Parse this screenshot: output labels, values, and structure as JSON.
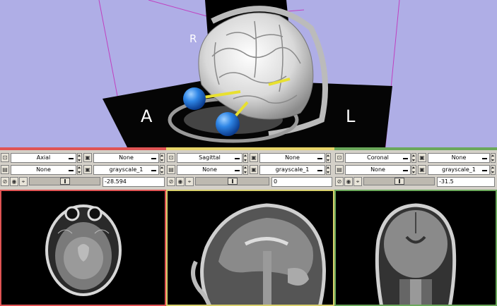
{
  "viewer3d": {
    "background": "#afaee6",
    "orientation_labels": {
      "anterior": "A",
      "left": "L",
      "right": "R"
    },
    "markers": [
      "blue-sphere",
      "blue-sphere"
    ]
  },
  "colors": {
    "axial": "#e05454",
    "sagittal": "#e8d66a",
    "coronal": "#6aa85a",
    "panel": "#d4d0c8"
  },
  "panels": {
    "axial": {
      "orientation": "Axial",
      "foreground": "None",
      "background": "None",
      "lookup": "grayscale_1",
      "offset": "-28.594",
      "slider_fraction": 0.45
    },
    "sagittal": {
      "orientation": "Sagittal",
      "foreground": "None",
      "background": "None",
      "lookup": "grayscale_1",
      "offset": "0",
      "slider_fraction": 0.5
    },
    "coronal": {
      "orientation": "Coronal",
      "foreground": "None",
      "background": "None",
      "lookup": "grayscale_1",
      "offset": "-31.5",
      "slider_fraction": 0.5
    }
  }
}
